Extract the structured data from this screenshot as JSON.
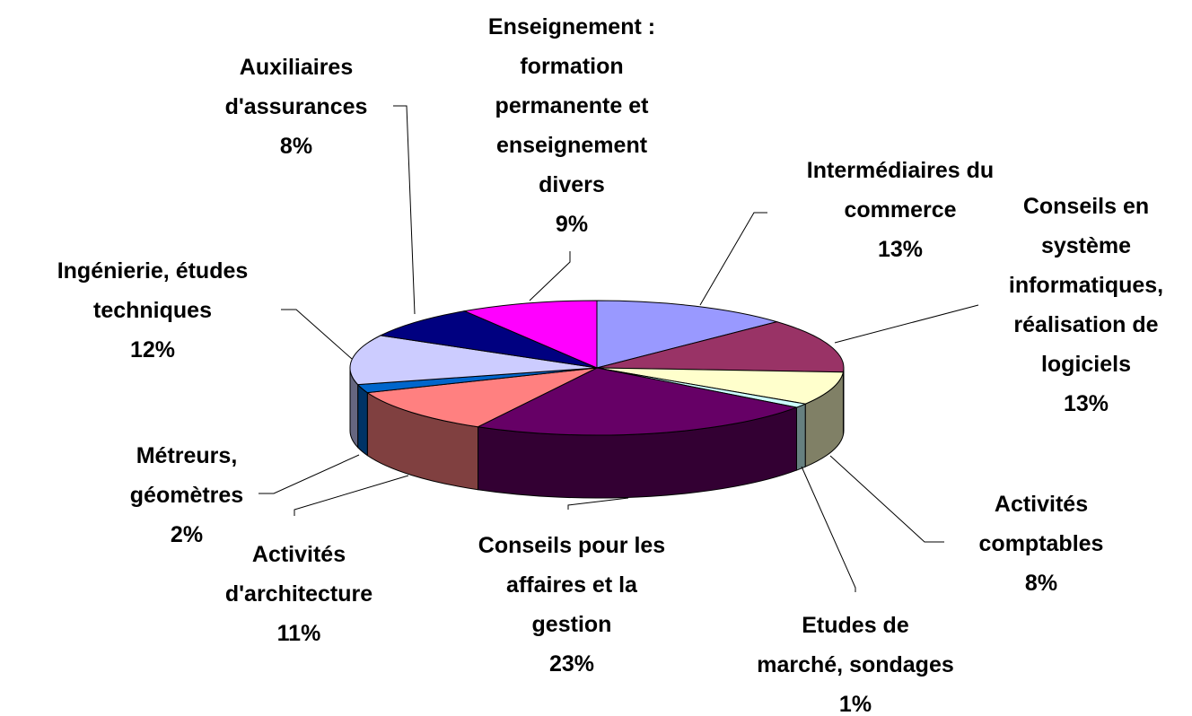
{
  "chart_data": {
    "type": "pie",
    "categories": [
      "Intermédiaires du\ncommerce",
      "Conseils en\nsystème\ninformatiques,\nréalisation de\nlogiciels",
      "Activités\ncomptables",
      "Etudes de\nmarché, sondages",
      "Conseils pour les\naffaires et la\ngestion",
      "Activités\nd'architecture",
      "Métreurs,\ngéomètres",
      "Ingénierie, études\ntechniques",
      "Auxiliaires\nd'assurances",
      "Enseignement :\nformation\npermanente et\nenseignement\ndivers"
    ],
    "values": [
      13,
      13,
      8,
      1,
      23,
      11,
      2,
      12,
      8,
      9
    ],
    "value_labels": [
      "13%",
      "13%",
      "8%",
      "1%",
      "23%",
      "11%",
      "2%",
      "12%",
      "8%",
      "9%"
    ],
    "colors": [
      "#9999ff",
      "#993366",
      "#ffffcc",
      "#ccffff",
      "#660066",
      "#ff8080",
      "#0066cc",
      "#ccccff",
      "#000080",
      "#ff00ff"
    ]
  }
}
